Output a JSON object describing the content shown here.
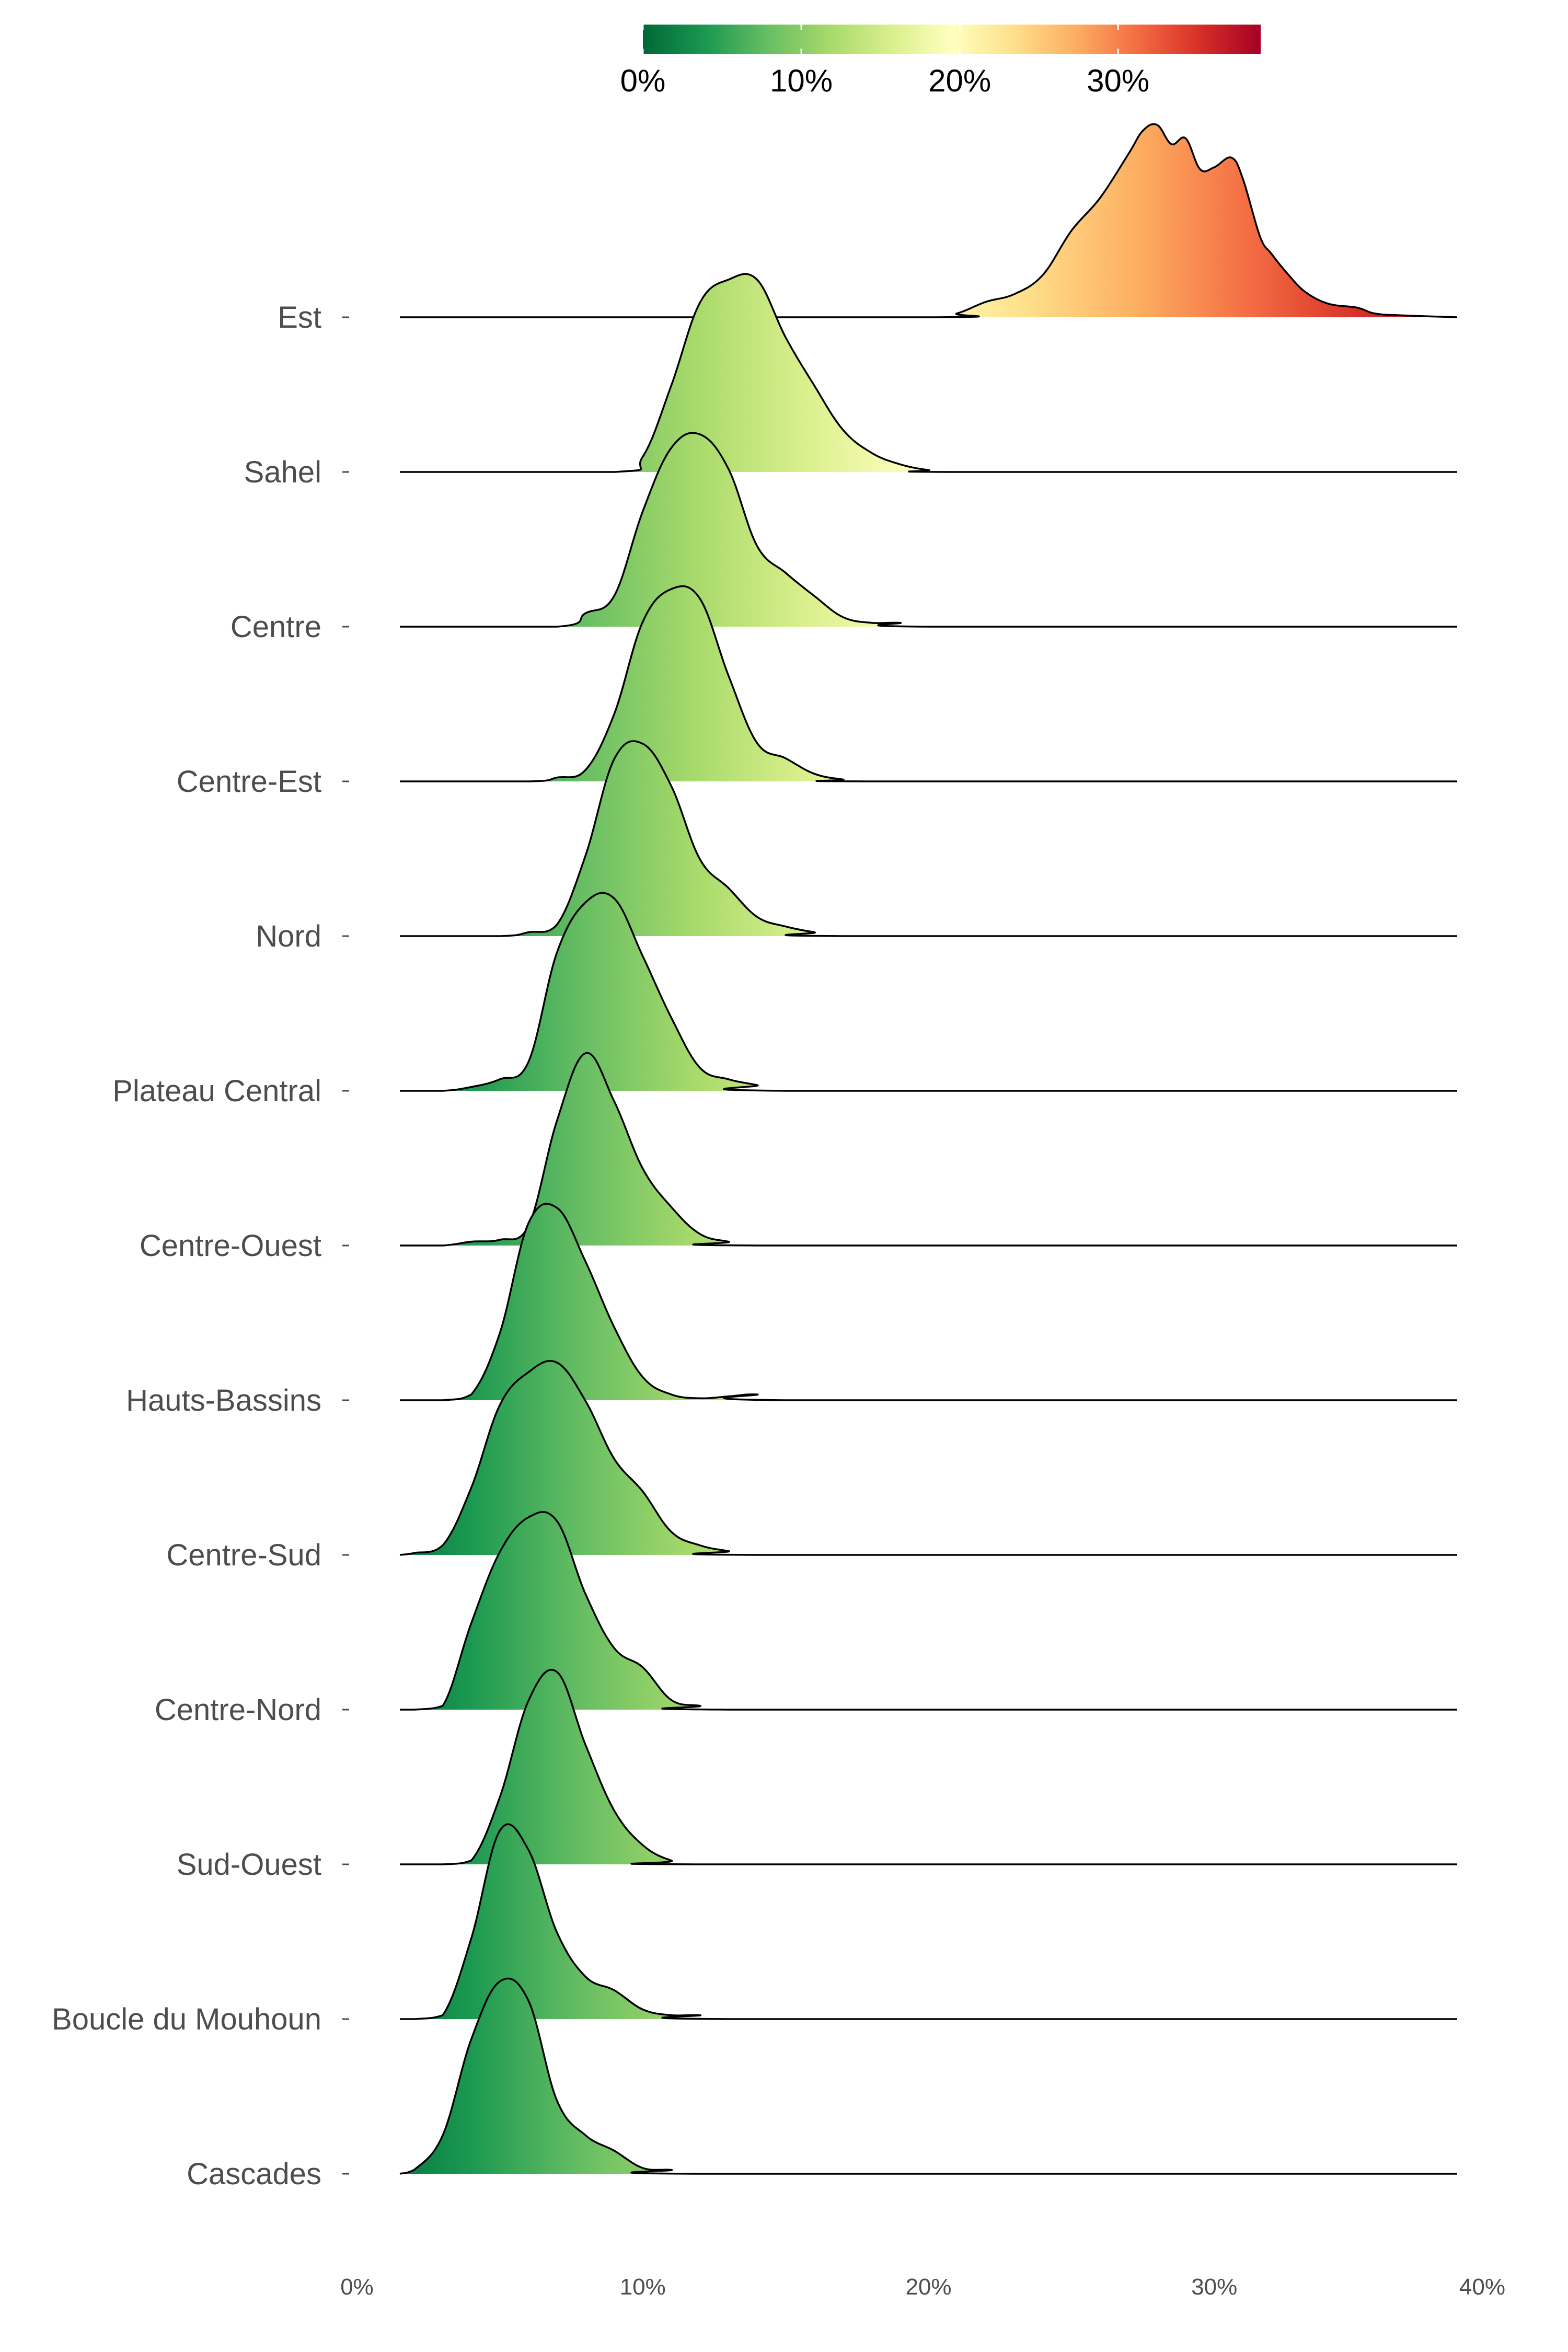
{
  "chart_data": {
    "type": "ridgeline",
    "color_scale": {
      "palette": [
        "#006837",
        "#1a9850",
        "#66bd63",
        "#a6d96a",
        "#d9ef8b",
        "#ffffbf",
        "#fee08b",
        "#fdae61",
        "#f46d43",
        "#d73027",
        "#a50026"
      ],
      "range": [
        0,
        39
      ],
      "ticks": [
        0,
        10,
        20,
        30
      ],
      "tick_labels": [
        "0%",
        "10%",
        "20%",
        "30%"
      ]
    },
    "x_axis": {
      "range": [
        0,
        40
      ],
      "ticks": [
        0,
        10,
        20,
        30,
        40
      ],
      "tick_labels": [
        "0%",
        "10%",
        "20%",
        "30%",
        "40%"
      ]
    },
    "x_extent": [
      1.5,
      38.5
    ],
    "series": [
      {
        "name": "Est",
        "points": [
          [
            20,
            0
          ],
          [
            21,
            0.02
          ],
          [
            22,
            0.08
          ],
          [
            23,
            0.12
          ],
          [
            24,
            0.22
          ],
          [
            25,
            0.45
          ],
          [
            26,
            0.62
          ],
          [
            27,
            0.85
          ],
          [
            27.5,
            0.97
          ],
          [
            28,
            1.0
          ],
          [
            28.5,
            0.9
          ],
          [
            29,
            0.93
          ],
          [
            29.5,
            0.77
          ],
          [
            30,
            0.78
          ],
          [
            30.6,
            0.83
          ],
          [
            31,
            0.72
          ],
          [
            31.6,
            0.42
          ],
          [
            32,
            0.33
          ],
          [
            32.6,
            0.22
          ],
          [
            33.2,
            0.13
          ],
          [
            34,
            0.07
          ],
          [
            35,
            0.05
          ],
          [
            35.6,
            0.02
          ],
          [
            36.5,
            0.01
          ],
          [
            38.5,
            0
          ]
        ]
      },
      {
        "name": "Sahel",
        "points": [
          [
            9,
            0
          ],
          [
            10,
            0.08
          ],
          [
            11,
            0.45
          ],
          [
            12,
            0.88
          ],
          [
            13,
            1.0
          ],
          [
            14,
            1.0
          ],
          [
            15,
            0.7
          ],
          [
            16,
            0.45
          ],
          [
            17,
            0.22
          ],
          [
            18,
            0.1
          ],
          [
            19,
            0.04
          ],
          [
            20,
            0.01
          ],
          [
            21,
            0
          ]
        ]
      },
      {
        "name": "Centre",
        "points": [
          [
            7,
            0
          ],
          [
            8,
            0.07
          ],
          [
            9,
            0.16
          ],
          [
            10,
            0.6
          ],
          [
            11,
            0.93
          ],
          [
            12,
            1.0
          ],
          [
            13,
            0.82
          ],
          [
            14,
            0.42
          ],
          [
            15,
            0.28
          ],
          [
            16,
            0.16
          ],
          [
            17,
            0.05
          ],
          [
            18,
            0.02
          ],
          [
            19,
            0.02
          ],
          [
            20,
            0
          ]
        ]
      },
      {
        "name": "Centre-Est",
        "points": [
          [
            6,
            0
          ],
          [
            7,
            0.02
          ],
          [
            8,
            0.06
          ],
          [
            9,
            0.35
          ],
          [
            10,
            0.83
          ],
          [
            11,
            1.0
          ],
          [
            12,
            0.95
          ],
          [
            13,
            0.55
          ],
          [
            14,
            0.2
          ],
          [
            15,
            0.12
          ],
          [
            16,
            0.04
          ],
          [
            17,
            0.01
          ],
          [
            18,
            0
          ]
        ]
      },
      {
        "name": "Nord",
        "points": [
          [
            5,
            0
          ],
          [
            6,
            0.02
          ],
          [
            7,
            0.06
          ],
          [
            8,
            0.42
          ],
          [
            9,
            0.92
          ],
          [
            10,
            1.0
          ],
          [
            11,
            0.78
          ],
          [
            12,
            0.4
          ],
          [
            13,
            0.25
          ],
          [
            14,
            0.1
          ],
          [
            15,
            0.05
          ],
          [
            16,
            0.02
          ],
          [
            17,
            0
          ]
        ]
      },
      {
        "name": "Plateau Central",
        "points": [
          [
            3,
            0
          ],
          [
            4,
            0.02
          ],
          [
            5,
            0.06
          ],
          [
            6,
            0.15
          ],
          [
            7,
            0.72
          ],
          [
            8,
            0.98
          ],
          [
            9,
            1.0
          ],
          [
            10,
            0.7
          ],
          [
            11,
            0.38
          ],
          [
            12,
            0.12
          ],
          [
            13,
            0.06
          ],
          [
            14,
            0.03
          ],
          [
            15,
            0
          ]
        ]
      },
      {
        "name": "Centre-Ouest",
        "points": [
          [
            3,
            0
          ],
          [
            4,
            0.02
          ],
          [
            5,
            0.03
          ],
          [
            6,
            0.1
          ],
          [
            7,
            0.65
          ],
          [
            8,
            1.0
          ],
          [
            9,
            0.75
          ],
          [
            10,
            0.4
          ],
          [
            11,
            0.2
          ],
          [
            12,
            0.06
          ],
          [
            13,
            0.02
          ],
          [
            14,
            0
          ]
        ]
      },
      {
        "name": "Hauts-Bassins",
        "points": [
          [
            3,
            0
          ],
          [
            4,
            0.03
          ],
          [
            5,
            0.35
          ],
          [
            6,
            0.92
          ],
          [
            7,
            1.0
          ],
          [
            8,
            0.72
          ],
          [
            9,
            0.38
          ],
          [
            10,
            0.12
          ],
          [
            11,
            0.03
          ],
          [
            12,
            0.01
          ],
          [
            13,
            0.02
          ],
          [
            14,
            0.03
          ],
          [
            15,
            0
          ]
        ]
      },
      {
        "name": "Centre-Sud",
        "points": [
          [
            1.5,
            0
          ],
          [
            2,
            0.01
          ],
          [
            3,
            0.05
          ],
          [
            4,
            0.35
          ],
          [
            5,
            0.78
          ],
          [
            6,
            0.95
          ],
          [
            7,
            1.0
          ],
          [
            8,
            0.8
          ],
          [
            9,
            0.5
          ],
          [
            10,
            0.33
          ],
          [
            11,
            0.12
          ],
          [
            12,
            0.05
          ],
          [
            13,
            0.02
          ],
          [
            14,
            0
          ]
        ]
      },
      {
        "name": "Centre-Nord",
        "points": [
          [
            2,
            0
          ],
          [
            3,
            0.02
          ],
          [
            4,
            0.45
          ],
          [
            5,
            0.82
          ],
          [
            6,
            1.0
          ],
          [
            7,
            0.98
          ],
          [
            8,
            0.6
          ],
          [
            9,
            0.32
          ],
          [
            10,
            0.22
          ],
          [
            11,
            0.05
          ],
          [
            12,
            0.02
          ],
          [
            13,
            0
          ]
        ]
      },
      {
        "name": "Sud-Ouest",
        "points": [
          [
            3,
            0
          ],
          [
            4,
            0.02
          ],
          [
            5,
            0.35
          ],
          [
            6,
            0.85
          ],
          [
            7,
            1.0
          ],
          [
            8,
            0.62
          ],
          [
            9,
            0.28
          ],
          [
            10,
            0.1
          ],
          [
            11,
            0.02
          ],
          [
            12,
            0
          ]
        ]
      },
      {
        "name": "Boucle du Mouhoun",
        "points": [
          [
            2,
            0
          ],
          [
            3,
            0.02
          ],
          [
            4,
            0.42
          ],
          [
            5,
            0.98
          ],
          [
            6,
            0.88
          ],
          [
            7,
            0.45
          ],
          [
            8,
            0.22
          ],
          [
            9,
            0.15
          ],
          [
            10,
            0.05
          ],
          [
            11,
            0.02
          ],
          [
            12,
            0.02
          ],
          [
            13,
            0
          ]
        ]
      },
      {
        "name": "Cascades",
        "points": [
          [
            1.5,
            0
          ],
          [
            2,
            0.02
          ],
          [
            3,
            0.2
          ],
          [
            4,
            0.7
          ],
          [
            5,
            1.0
          ],
          [
            6,
            0.9
          ],
          [
            7,
            0.38
          ],
          [
            8,
            0.2
          ],
          [
            9,
            0.12
          ],
          [
            10,
            0.03
          ],
          [
            11,
            0.02
          ],
          [
            12,
            0
          ]
        ]
      }
    ]
  }
}
